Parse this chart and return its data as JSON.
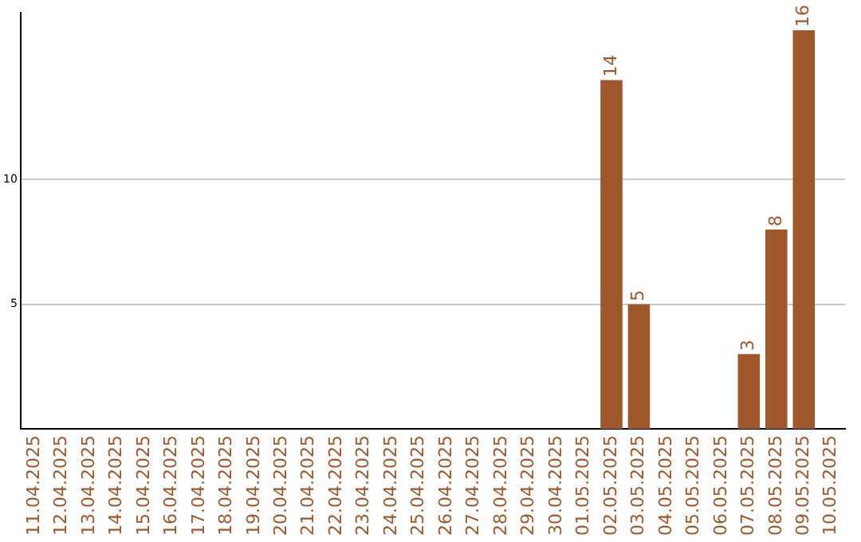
{
  "chart_data": {
    "type": "bar",
    "categories": [
      "11.04.2025",
      "12.04.2025",
      "13.04.2025",
      "14.04.2025",
      "15.04.2025",
      "16.04.2025",
      "17.04.2025",
      "18.04.2025",
      "19.04.2025",
      "20.04.2025",
      "21.04.2025",
      "22.04.2025",
      "23.04.2025",
      "24.04.2025",
      "25.04.2025",
      "26.04.2025",
      "27.04.2025",
      "28.04.2025",
      "29.04.2025",
      "30.04.2025",
      "01.05.2025",
      "02.05.2025",
      "03.05.2025",
      "04.05.2025",
      "05.05.2025",
      "06.05.2025",
      "07.05.2025",
      "08.05.2025",
      "09.05.2025",
      "10.05.2025"
    ],
    "values": [
      0,
      0,
      0,
      0,
      0,
      0,
      0,
      0,
      0,
      0,
      0,
      0,
      0,
      0,
      0,
      0,
      0,
      0,
      0,
      0,
      0,
      14,
      5,
      0,
      0,
      0,
      3,
      8,
      16,
      0
    ],
    "value_labels": [
      null,
      null,
      null,
      null,
      null,
      null,
      null,
      null,
      null,
      null,
      null,
      null,
      null,
      null,
      null,
      null,
      null,
      null,
      null,
      null,
      null,
      "14",
      "5",
      null,
      null,
      null,
      "3",
      "8",
      "16",
      null
    ],
    "color": "#a0582a",
    "ylim": [
      0,
      16.7
    ],
    "yticks": [
      5,
      10
    ],
    "grid": "y",
    "legend": false
  }
}
